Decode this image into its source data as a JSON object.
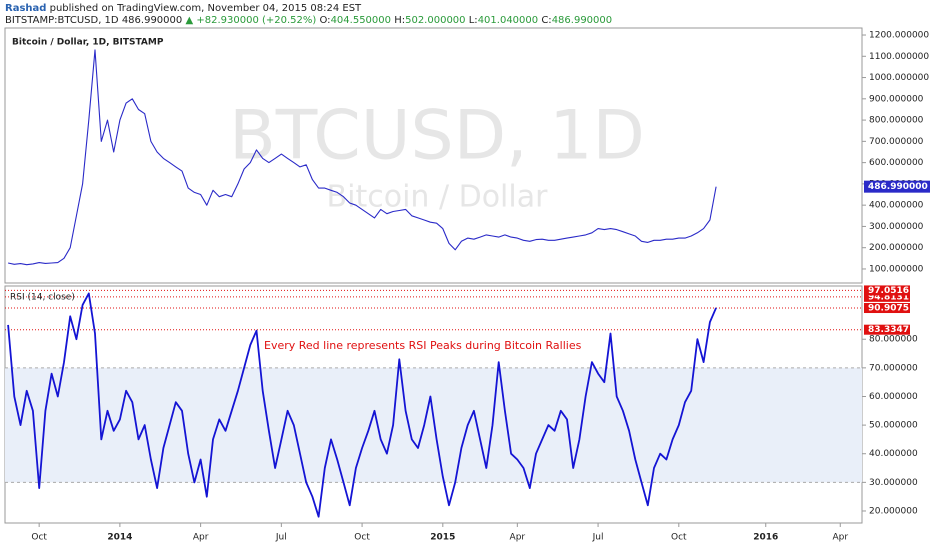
{
  "header": {
    "author": "Rashad",
    "published": "published on TradingView.com, November 04, 2015 08:24 EST",
    "symbol": "BITSTAMP:BTCUSD, 1D",
    "last": "486.990000",
    "change": "+82.930000 (+20.52%)",
    "ohlc": [
      {
        "label": "O:",
        "value": "404.550000"
      },
      {
        "label": "H:",
        "value": "502.000000"
      },
      {
        "label": "L:",
        "value": "401.040000"
      },
      {
        "label": "C:",
        "value": "486.990000"
      }
    ]
  },
  "chart_data": [
    {
      "type": "line",
      "title": "Bitcoin / Dollar, 1D, BITSTAMP",
      "watermark": "BTCUSD, 1D",
      "watermark_subtitle": "Bitcoin / Dollar",
      "color": "#2a2ac8",
      "categories": [
        null,
        null,
        null,
        null,
        null,
        "Oct",
        null,
        null,
        null,
        null,
        null,
        null,
        null,
        null,
        null,
        null,
        null,
        null,
        "2014",
        null,
        null,
        null,
        null,
        null,
        null,
        null,
        null,
        null,
        null,
        null,
        null,
        "Apr",
        null,
        null,
        null,
        null,
        null,
        null,
        null,
        null,
        null,
        null,
        null,
        null,
        "Jul",
        null,
        null,
        null,
        null,
        null,
        null,
        null,
        null,
        null,
        null,
        null,
        null,
        "Oct",
        null,
        null,
        null,
        null,
        null,
        null,
        null,
        null,
        null,
        null,
        null,
        null,
        "2015",
        null,
        null,
        null,
        null,
        null,
        null,
        null,
        null,
        null,
        null,
        null,
        "Apr",
        null,
        null,
        null,
        null,
        null,
        null,
        null,
        null,
        null,
        null,
        null,
        null,
        "Jul",
        null,
        null,
        null,
        null,
        null,
        null,
        null,
        null,
        null,
        null,
        null,
        null,
        "Oct",
        null,
        null,
        null,
        null,
        null,
        null,
        null,
        null,
        null,
        null,
        null,
        null,
        null,
        "2016",
        null,
        null,
        null,
        null,
        null,
        null,
        null,
        null,
        null,
        null,
        null,
        "Apr",
        null,
        null,
        null
      ],
      "values": [
        128,
        122,
        125,
        120,
        124,
        130,
        126,
        128,
        130,
        150,
        200,
        350,
        500,
        800,
        1130,
        700,
        800,
        650,
        800,
        880,
        900,
        850,
        830,
        700,
        650,
        620,
        600,
        580,
        560,
        480,
        460,
        450,
        400,
        470,
        440,
        450,
        440,
        500,
        570,
        600,
        660,
        620,
        600,
        620,
        640,
        620,
        600,
        580,
        590,
        520,
        480,
        480,
        470,
        460,
        440,
        410,
        400,
        380,
        360,
        340,
        380,
        360,
        370,
        375,
        380,
        350,
        340,
        330,
        320,
        315,
        290,
        220,
        190,
        230,
        245,
        240,
        250,
        260,
        255,
        250,
        260,
        250,
        245,
        235,
        230,
        238,
        240,
        235,
        235,
        240,
        245,
        250,
        255,
        260,
        270,
        290,
        285,
        290,
        285,
        275,
        265,
        255,
        230,
        225,
        235,
        235,
        240,
        240,
        245,
        245,
        255,
        270,
        290,
        330,
        486.99,
        null,
        null,
        null,
        null,
        null,
        null,
        null,
        null,
        null,
        null,
        null,
        null,
        null,
        null,
        null,
        null,
        null,
        null,
        null,
        null,
        null,
        null,
        null
      ],
      "ylim": [
        34,
        1233
      ],
      "yticks": [
        {
          "value": 100,
          "label": "100.000000"
        },
        {
          "value": 200,
          "label": "200.000000"
        },
        {
          "value": 300,
          "label": "300.000000"
        },
        {
          "value": 400,
          "label": "400.000000"
        },
        {
          "value": 500,
          "label": "500.000000"
        },
        {
          "value": 600,
          "label": "600.000000"
        },
        {
          "value": 700,
          "label": "700.000000"
        },
        {
          "value": 800,
          "label": "800.000000"
        },
        {
          "value": 900,
          "label": "900.000000"
        },
        {
          "value": 1000,
          "label": "1000.000000"
        },
        {
          "value": 1100,
          "label": "1100.000000"
        },
        {
          "value": 1200,
          "label": "1200.000000"
        }
      ],
      "last_price": {
        "value": 486.99,
        "label": "486.990000"
      }
    },
    {
      "type": "line",
      "title": "RSI (14, close)",
      "color": "#1414d4",
      "annotation": "Every Red line represents RSI Peaks during Bitcoin Rallies",
      "values": [
        85,
        60,
        50,
        62,
        55,
        28,
        55,
        68,
        60,
        72,
        88,
        80,
        92,
        96,
        82,
        45,
        55,
        48,
        52,
        62,
        58,
        45,
        50,
        38,
        28,
        42,
        50,
        58,
        55,
        40,
        30,
        38,
        25,
        45,
        52,
        48,
        55,
        62,
        70,
        78,
        83,
        62,
        48,
        35,
        45,
        55,
        50,
        40,
        30,
        25,
        18,
        35,
        45,
        38,
        30,
        22,
        35,
        42,
        48,
        55,
        45,
        40,
        50,
        73,
        55,
        45,
        42,
        50,
        60,
        45,
        32,
        22,
        30,
        42,
        50,
        55,
        45,
        35,
        50,
        72,
        55,
        40,
        38,
        35,
        28,
        40,
        45,
        50,
        48,
        55,
        52,
        35,
        45,
        60,
        72,
        68,
        65,
        82,
        60,
        55,
        48,
        38,
        30,
        22,
        35,
        40,
        38,
        45,
        50,
        58,
        62,
        80,
        72,
        86,
        91,
        null,
        null,
        null,
        null,
        null,
        null,
        null,
        null,
        null,
        null,
        null,
        null,
        null,
        null,
        null,
        null,
        null,
        null,
        null,
        null,
        null,
        null,
        null
      ],
      "ylim": [
        15.8,
        98.6
      ],
      "yticks": [
        {
          "value": 20,
          "label": "20.000000"
        },
        {
          "value": 30,
          "label": "30.000000"
        },
        {
          "value": 40,
          "label": "40.000000"
        },
        {
          "value": 50,
          "label": "50.000000"
        },
        {
          "value": 60,
          "label": "60.000000"
        },
        {
          "value": 70,
          "label": "70.000000"
        },
        {
          "value": 80,
          "label": "80.000000"
        }
      ],
      "band": [
        30,
        70
      ],
      "band_color": "#e9eff9",
      "peak_lines": [
        83.3347,
        90.9075,
        94.8131,
        97.0516
      ],
      "peak_color": "#e01010"
    }
  ]
}
